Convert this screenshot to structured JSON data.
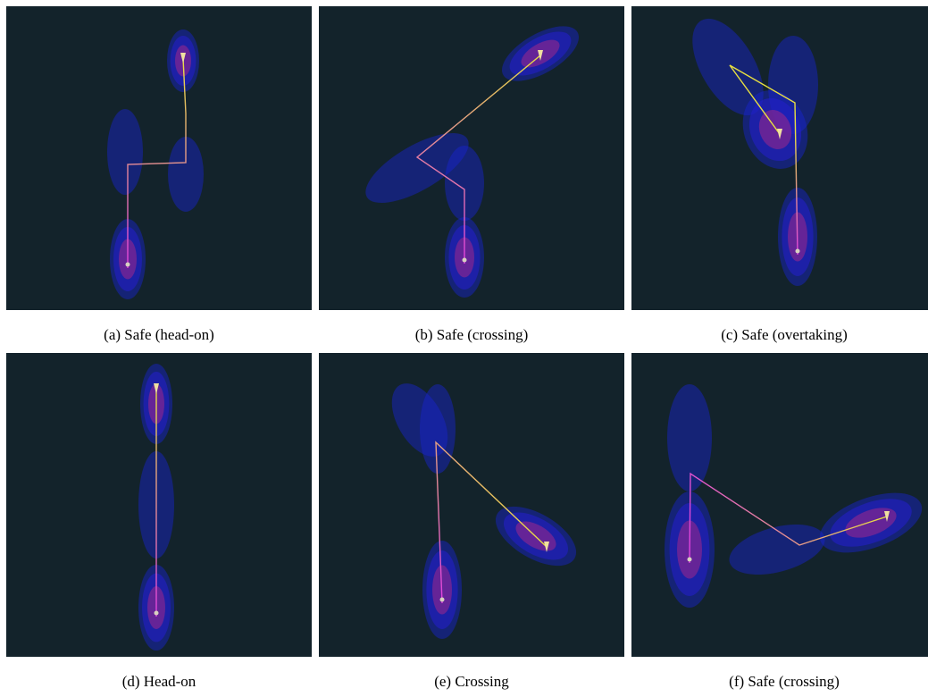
{
  "panels": [
    {
      "caption": "(a) Safe (head-on)"
    },
    {
      "caption": "(b) Safe (crossing)"
    },
    {
      "caption": "(c) Safe (overtaking)"
    },
    {
      "caption": "(d) Head-on"
    },
    {
      "caption": "(e) Crossing"
    },
    {
      "caption": "(f) Safe (crossing)"
    }
  ]
}
